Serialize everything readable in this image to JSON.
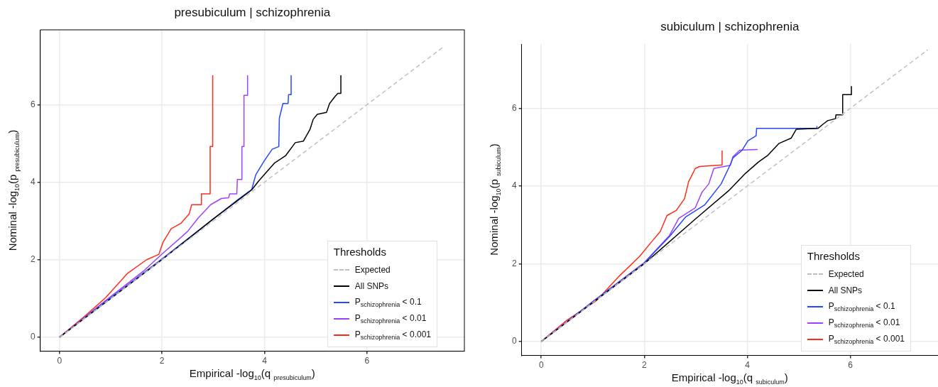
{
  "chart_data": [
    {
      "type": "line",
      "title": "presubiculum | schizophrenia",
      "xlabel": "Empirical -log$_{10}$(q $_{presubiculum}$)",
      "ylabel": "Nominal -log$_{10}$(p $_{presubiculum}$)",
      "legend_title": "Thresholds",
      "legend": "bottom right",
      "grid": true,
      "marker": "none",
      "xlim": [
        -0.375,
        7.9
      ],
      "ylim": [
        -0.36,
        7.93
      ],
      "xticks": [
        0,
        2,
        4,
        6
      ],
      "yticks": [
        0,
        2,
        4,
        6
      ],
      "series": [
        {
          "name": "Expected",
          "color": "#c0c0c0",
          "line_style": "dashed",
          "x": [
            0,
            7.5
          ],
          "values": [
            0,
            7.5
          ]
        },
        {
          "name": "All SNPs",
          "color": "#000000",
          "x": [
            0,
            1,
            2,
            3,
            3.5,
            3.75,
            3.88,
            4.04,
            4.2,
            4.41,
            4.6,
            4.76,
            4.89,
            4.95,
            5.03,
            5.21,
            5.27,
            5.37,
            5.43,
            5.49,
            5.49
          ],
          "values": [
            0,
            1,
            2,
            3.05,
            3.55,
            3.8,
            4.02,
            4.26,
            4.5,
            4.68,
            5.02,
            5.06,
            5.37,
            5.62,
            5.75,
            5.8,
            6.03,
            6.2,
            6.29,
            6.29,
            6.76
          ]
        },
        {
          "name": "P$_{schizophrenia}$ < 0.1",
          "color": "#2448ff",
          "x": [
            0,
            1,
            2,
            3,
            3.5,
            3.75,
            3.83,
            3.99,
            4.15,
            4.28,
            4.29,
            4.36,
            4.46,
            4.47,
            4.52,
            4.52
          ],
          "values": [
            0,
            1.02,
            2.02,
            3.05,
            3.57,
            3.81,
            4.19,
            4.54,
            4.85,
            4.92,
            5.65,
            6.03,
            6.03,
            6.26,
            6.26,
            6.76
          ]
        },
        {
          "name": "P$_{schizophrenia}$ < 0.01",
          "color": "#a040ff",
          "x": [
            0,
            1,
            1.65,
            2.02,
            2.5,
            2.71,
            2.95,
            3.16,
            3.3,
            3.32,
            3.46,
            3.47,
            3.56,
            3.56,
            3.6,
            3.6,
            3.67,
            3.67
          ],
          "values": [
            0,
            1.05,
            1.72,
            2.17,
            2.73,
            3.08,
            3.42,
            3.58,
            3.6,
            3.7,
            3.7,
            4.07,
            4.07,
            4.92,
            4.92,
            6.24,
            6.24,
            6.76
          ]
        },
        {
          "name": "P$_{schizophrenia}$ < 0.001",
          "color": "#ff2a1a",
          "x": [
            0,
            0.5,
            0.9,
            1.33,
            1.7,
            1.94,
            2.02,
            2.18,
            2.37,
            2.53,
            2.58,
            2.77,
            2.77,
            2.94,
            2.94,
            2.99,
            2.99
          ],
          "values": [
            0,
            0.55,
            1.02,
            1.65,
            2,
            2.14,
            2.45,
            2.8,
            2.94,
            3.18,
            3.42,
            3.42,
            3.7,
            3.7,
            4.92,
            4.92,
            6.76
          ]
        }
      ]
    },
    {
      "type": "line",
      "title": "subiculum | schizophrenia",
      "xlabel": "Empirical -log$_{10}$(q $_{subiculum}$)",
      "ylabel": "Nominal -log$_{10}$(p $_{subiculum}$)",
      "legend_title": "Thresholds",
      "legend": "bottom right",
      "grid": true,
      "marker": "none",
      "xlim": [
        -0.38,
        7.7
      ],
      "ylim": [
        -0.36,
        7.65
      ],
      "xticks": [
        0,
        2,
        4,
        6
      ],
      "yticks": [
        0,
        2,
        4,
        6
      ],
      "series": [
        {
          "name": "Expected",
          "color": "#c0c0c0",
          "line_style": "dashed",
          "x": [
            0,
            7.5
          ],
          "values": [
            0,
            7.5
          ]
        },
        {
          "name": "All SNPs",
          "color": "#000000",
          "x": [
            0,
            1,
            2,
            3.01,
            3.64,
            3.96,
            4.22,
            4.4,
            4.61,
            4.85,
            4.95,
            5.37,
            5.48,
            5.56,
            5.71,
            5.72,
            5.84,
            5.85,
            6.02,
            6.02
          ],
          "values": [
            0,
            1,
            2,
            3.17,
            3.88,
            4.32,
            4.62,
            4.79,
            5.09,
            5.23,
            5.46,
            5.48,
            5.6,
            5.68,
            5.73,
            5.83,
            5.83,
            6.35,
            6.35,
            6.57
          ]
        },
        {
          "name": "P$_{schizophrenia}$ < 0.1",
          "color": "#2448ff",
          "x": [
            0,
            1,
            2,
            2.49,
            2.8,
            3.17,
            3.49,
            3.67,
            3.72,
            3.9,
            4.01,
            4.17,
            4.18,
            5.35,
            5.35
          ],
          "values": [
            0,
            1.02,
            2.02,
            2.7,
            3.2,
            3.51,
            4.05,
            4.55,
            4.72,
            4.92,
            5.16,
            5.29,
            5.48,
            5.48,
            5.54
          ]
        },
        {
          "name": "P$_{schizophrenia}$ < 0.01",
          "color": "#a040ff",
          "x": [
            0,
            1,
            2,
            2.49,
            2.67,
            2.99,
            3.12,
            3.25,
            3.35,
            3.67,
            3.72,
            3.85,
            4.2
          ],
          "values": [
            0,
            1.03,
            2.03,
            2.73,
            3.17,
            3.44,
            3.84,
            4.05,
            4.45,
            4.53,
            4.75,
            4.92,
            4.94
          ]
        },
        {
          "name": "P$_{schizophrenia}$ < 0.001",
          "color": "#ff2a1a",
          "x": [
            0,
            0.5,
            1.07,
            1.52,
            1.91,
            2.12,
            2.31,
            2.44,
            2.62,
            2.78,
            2.86,
            2.99,
            3.07,
            3.51,
            3.51
          ],
          "values": [
            0,
            0.55,
            1.05,
            1.69,
            2.19,
            2.53,
            2.83,
            3.24,
            3.37,
            3.67,
            4.11,
            4.45,
            4.5,
            4.54,
            4.91
          ]
        }
      ]
    }
  ]
}
